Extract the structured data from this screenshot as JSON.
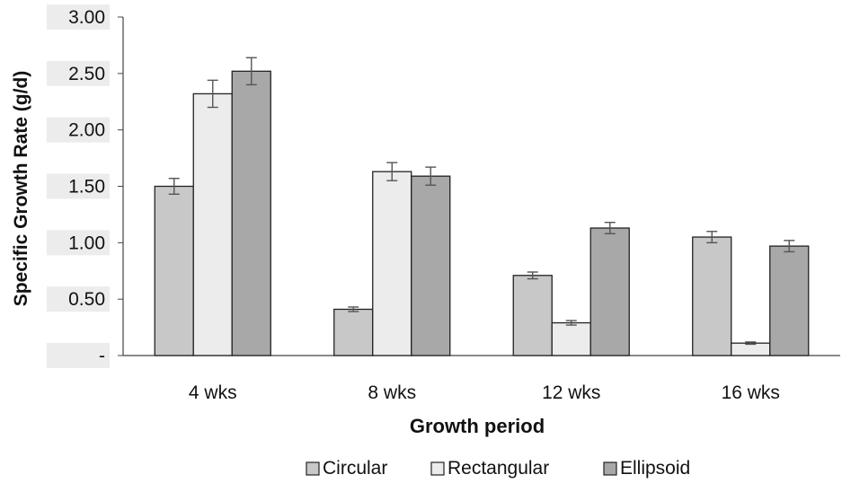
{
  "chart_data": {
    "type": "bar",
    "categories": [
      "4 wks",
      "8 wks",
      "12 wks",
      "16 wks"
    ],
    "series": [
      {
        "name": "Circular",
        "values": [
          1.5,
          0.41,
          0.71,
          1.05
        ],
        "errors": [
          0.07,
          0.02,
          0.03,
          0.05
        ],
        "color": "#c8c8c8"
      },
      {
        "name": "Rectangular",
        "values": [
          2.32,
          1.63,
          0.29,
          0.11
        ],
        "errors": [
          0.12,
          0.08,
          0.02,
          0.01
        ],
        "color": "#ececec"
      },
      {
        "name": "Ellipsoid",
        "values": [
          2.52,
          1.59,
          1.13,
          0.97
        ],
        "errors": [
          0.12,
          0.08,
          0.05,
          0.05
        ],
        "color": "#a8a8a8"
      }
    ],
    "xlabel": "Growth period",
    "ylabel": "Specific Growth Rate (g/d)",
    "ylim": [
      0,
      3.0
    ],
    "yticks": [
      0,
      0.5,
      1.0,
      1.5,
      2.0,
      2.5,
      3.0
    ],
    "ytick_labels": [
      "-",
      "0.50",
      "1.00",
      "1.50",
      "2.00",
      "2.50",
      "3.00"
    ],
    "grid": false,
    "legend_position": "bottom"
  }
}
